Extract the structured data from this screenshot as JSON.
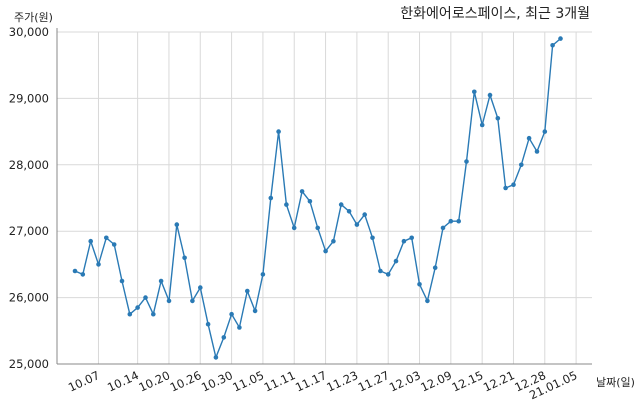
{
  "chart_data": {
    "type": "line",
    "title": "한화에어로스페이스, 최근 3개월",
    "ylabel": "주가(원)",
    "xlabel": "날짜(일)",
    "ylim": [
      25000,
      30000
    ],
    "yticks": [
      25000,
      26000,
      27000,
      28000,
      29000,
      30000
    ],
    "ytick_labels": [
      "25,000",
      "26,000",
      "27,000",
      "28,000",
      "29,000",
      "30,000"
    ],
    "xticks": [
      {
        "label": "10.07",
        "x": 3
      },
      {
        "label": "10.14",
        "x": 8
      },
      {
        "label": "10.20",
        "x": 12
      },
      {
        "label": "10.26",
        "x": 16
      },
      {
        "label": "10.30",
        "x": 20
      },
      {
        "label": "11.05",
        "x": 24
      },
      {
        "label": "11.11",
        "x": 28
      },
      {
        "label": "11.17",
        "x": 32
      },
      {
        "label": "11.23",
        "x": 36
      },
      {
        "label": "11.27",
        "x": 40
      },
      {
        "label": "12.03",
        "x": 44
      },
      {
        "label": "12.09",
        "x": 48
      },
      {
        "label": "12.15",
        "x": 52
      },
      {
        "label": "12.21",
        "x": 56
      },
      {
        "label": "12.28",
        "x": 60
      },
      {
        "label": "21.01.05",
        "x": 64
      }
    ],
    "grid": true,
    "color": "#2a7ab5",
    "series": [
      {
        "values": [
          26400,
          26350,
          26850,
          26500,
          26900,
          26800,
          26250,
          25750,
          25850,
          26000,
          25750,
          26250,
          25950,
          27100,
          26600,
          25950,
          26150,
          25600,
          25100,
          25400,
          25750,
          25550,
          26100,
          25800,
          26350,
          27500,
          28500,
          27400,
          27050,
          27600,
          27450,
          27050,
          26700,
          26850,
          27400,
          27300,
          27100,
          27250,
          26900,
          26400,
          26350,
          26550,
          26850,
          26900,
          26200,
          25950,
          26450,
          27050,
          27150,
          27150,
          28050,
          29100,
          28600,
          29050,
          28700,
          27650,
          27700,
          28000,
          28400,
          28200,
          28500,
          29800,
          29900
        ]
      }
    ]
  }
}
